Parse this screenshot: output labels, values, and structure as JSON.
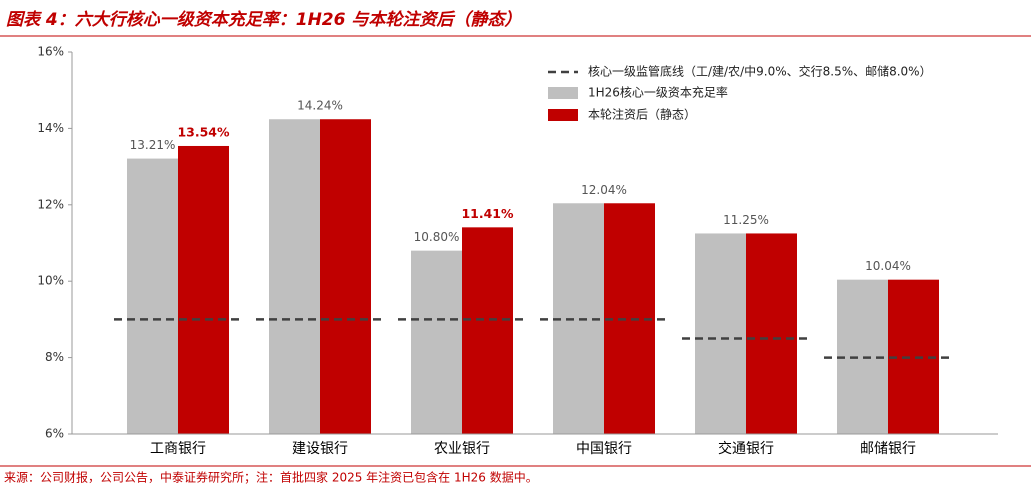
{
  "chart_data": {
    "type": "bar",
    "title": "图表 4：六大行核心一级资本充足率：1H26 与本轮注资后（静态）",
    "source": "来源：公司财报，公司公告，中泰证券研究所；注：首批四家 2025 年注资已包含在 1H26 数据中。",
    "categories": [
      "工商银行",
      "建设银行",
      "农业银行",
      "中国银行",
      "交通银行",
      "邮储银行"
    ],
    "series": [
      {
        "name": "1H26核心一级资本充足率",
        "color": "#bfbfbf",
        "values": [
          13.21,
          14.24,
          10.8,
          12.04,
          11.25,
          10.04
        ],
        "value_labels": [
          "13.21%",
          "14.24%",
          "10.80%",
          "12.04%",
          "11.25%",
          "10.04%"
        ]
      },
      {
        "name": "本轮注资后（静态）",
        "color": "#c00000",
        "values": [
          13.54,
          14.24,
          11.41,
          12.04,
          11.25,
          10.04
        ],
        "value_labels": [
          "13.54%",
          null,
          "11.41%",
          null,
          null,
          null
        ]
      }
    ],
    "reference": {
      "name": "核心一级监管底线（工/建/农/中9.0%、交行8.5%、邮储8.0%）",
      "color": "#404040",
      "style": "dashed",
      "values": [
        9.0,
        9.0,
        9.0,
        9.0,
        8.5,
        8.0
      ]
    },
    "ylim": [
      6,
      16
    ],
    "yticks": [
      {
        "value": 6,
        "label": "6%"
      },
      {
        "value": 8,
        "label": "8%"
      },
      {
        "value": 10,
        "label": "10%"
      },
      {
        "value": 12,
        "label": "12%"
      },
      {
        "value": 14,
        "label": "14%"
      },
      {
        "value": 16,
        "label": "16%"
      }
    ],
    "grid": false,
    "legend": "top-right"
  }
}
